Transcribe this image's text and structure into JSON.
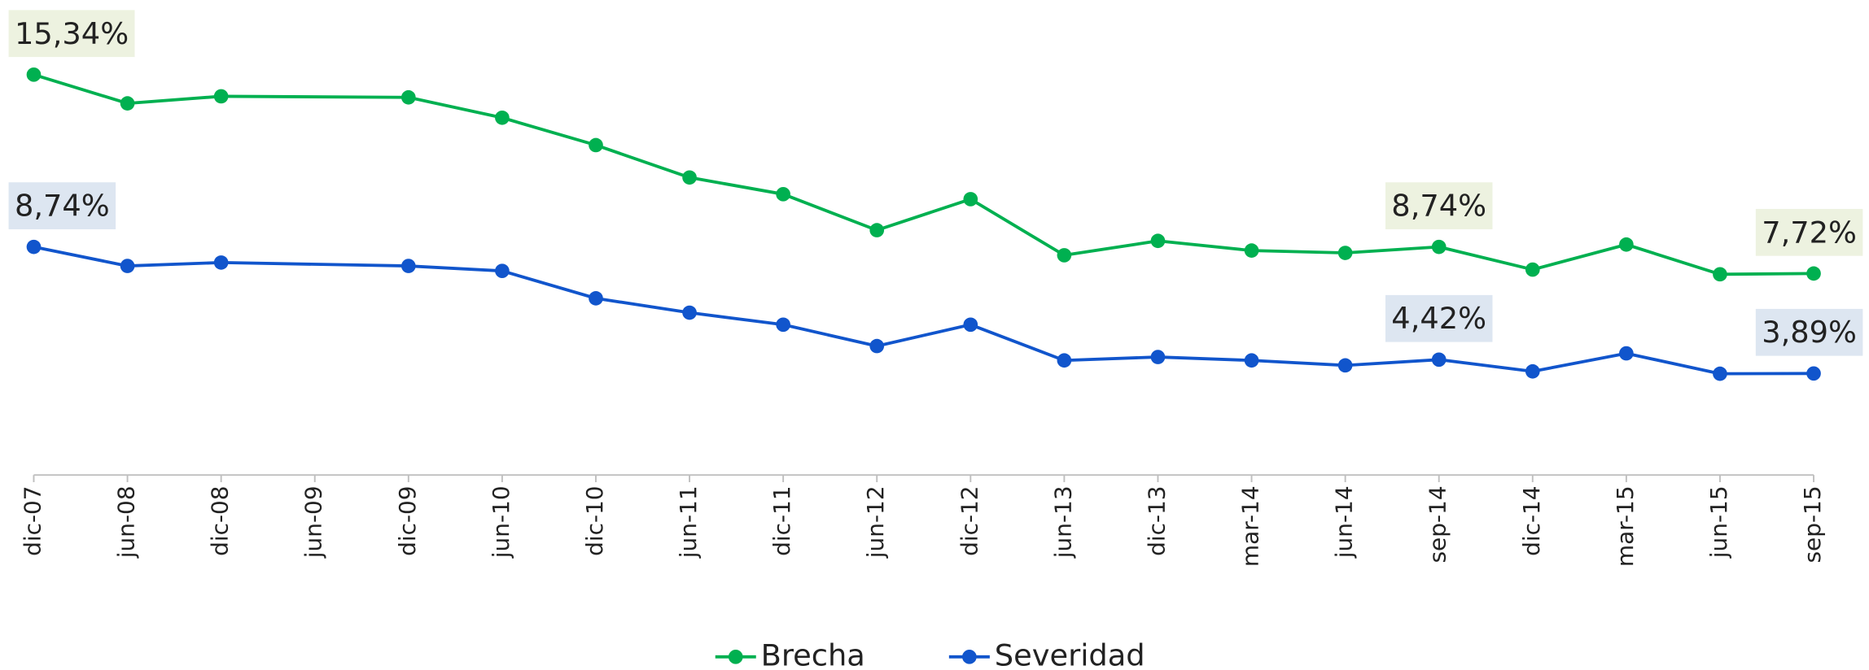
{
  "chart_data": {
    "type": "line",
    "categories": [
      "dic-07",
      "jun-08",
      "dic-08",
      "jun-09",
      "dic-09",
      "jun-10",
      "dic-10",
      "jun-11",
      "dic-11",
      "jun-12",
      "dic-12",
      "jun-13",
      "dic-13",
      "mar-14",
      "jun-14",
      "sep-14",
      "dic-14",
      "mar-15",
      "jun-15",
      "sep-15"
    ],
    "series": [
      {
        "name": "Brecha",
        "color": "#00b050",
        "label_bg": "#edf2e0",
        "values": [
          15.34,
          14.24,
          14.51,
          null,
          14.47,
          13.69,
          12.64,
          11.4,
          10.76,
          9.38,
          10.57,
          8.42,
          8.97,
          8.6,
          8.51,
          8.74,
          7.87,
          8.83,
          7.69,
          7.72
        ],
        "value_labels": [
          "15,34%",
          null,
          null,
          null,
          null,
          null,
          null,
          null,
          null,
          null,
          null,
          null,
          null,
          null,
          null,
          "8,74%",
          null,
          null,
          null,
          "7,72%"
        ]
      },
      {
        "name": "Severidad",
        "color": "#1155cc",
        "label_bg": "#dde6f1",
        "values": [
          8.74,
          8.01,
          8.14,
          null,
          8.01,
          7.82,
          6.77,
          6.22,
          5.76,
          4.94,
          5.76,
          4.39,
          4.52,
          4.39,
          4.2,
          4.42,
          3.97,
          4.66,
          3.88,
          3.89
        ],
        "value_labels": [
          "8,74%",
          null,
          null,
          null,
          null,
          null,
          null,
          null,
          null,
          null,
          null,
          null,
          null,
          null,
          null,
          "4,42%",
          null,
          null,
          null,
          "3,89%"
        ]
      }
    ],
    "ylim": [
      0,
      16
    ],
    "legend": "bottom"
  }
}
